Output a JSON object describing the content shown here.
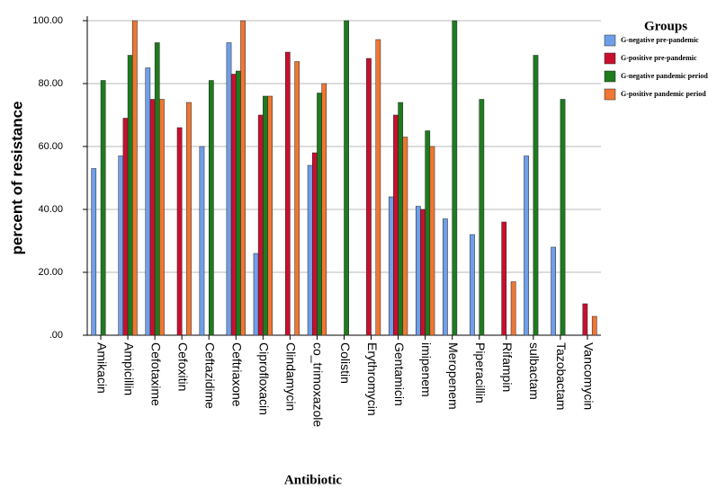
{
  "chart_data": {
    "type": "bar",
    "x_label": "Antibiotic",
    "y_label": "percent of resistance",
    "legend_title": "Groups",
    "categories": [
      "Amikacin",
      "Ampicillin",
      "Cefotaxime",
      "Cefoxitin",
      "Ceftazidime",
      "Ceftriaxone",
      "Ciprofloxacin",
      "Clindamycin",
      "co_trimoxazole",
      "Colistin",
      "Erythromycin",
      "Gentamicin",
      "imipenem",
      "Meropenem",
      "Piperacillin",
      "Rifampin",
      "sulbactam",
      "Tazobactam",
      "Vancomycin"
    ],
    "series": [
      {
        "name": "G-negative pre-pandemic",
        "color": "#6f9fe8",
        "values": [
          53,
          57,
          85,
          null,
          60,
          93,
          26,
          null,
          54,
          null,
          null,
          44,
          41,
          37,
          32,
          null,
          57,
          28,
          null
        ]
      },
      {
        "name": "G-positive pre-pandemic",
        "color": "#c8102e",
        "values": [
          null,
          69,
          75,
          66,
          null,
          83,
          70,
          90,
          58,
          null,
          88,
          70,
          40,
          null,
          null,
          36,
          null,
          null,
          10
        ]
      },
      {
        "name": "G-negative pandemic period",
        "color": "#1e7b1e",
        "values": [
          81,
          89,
          93,
          null,
          81,
          84,
          76,
          null,
          77,
          100,
          null,
          74,
          65,
          100,
          75,
          null,
          89,
          75,
          null
        ]
      },
      {
        "name": "G-positive pandemic period",
        "color": "#ee7733",
        "values": [
          null,
          100,
          75,
          74,
          null,
          100,
          76,
          87,
          80,
          null,
          94,
          63,
          60,
          null,
          null,
          17,
          null,
          null,
          6
        ]
      }
    ],
    "ylim": [
      0,
      100
    ],
    "yticks": [
      {
        "value": 0,
        "label": ".00"
      },
      {
        "value": 20,
        "label": "20.00"
      },
      {
        "value": 40,
        "label": "40.00"
      },
      {
        "value": 60,
        "label": "60.00"
      },
      {
        "value": 80,
        "label": "80.00"
      },
      {
        "value": 100,
        "label": "100.00"
      }
    ],
    "grid": true,
    "legend": "top-right"
  }
}
